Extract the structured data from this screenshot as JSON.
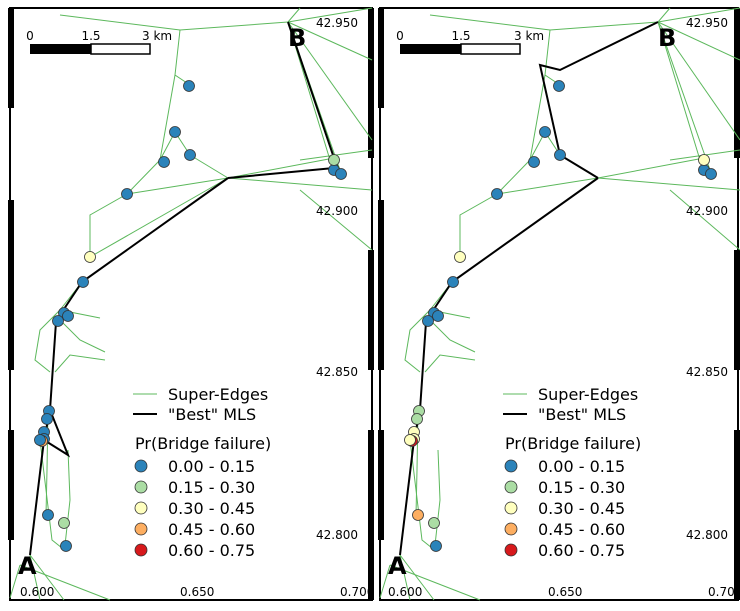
{
  "scale_bar": {
    "labels": [
      "0",
      "1.5",
      "3 km"
    ]
  },
  "endpoints": {
    "start": "A",
    "end": "B"
  },
  "lat_labels": [
    "42.950",
    "42.900",
    "42.850",
    "42.800"
  ],
  "lon_labels": [
    "0.600",
    "0.650",
    "0.700"
  ],
  "legend": {
    "super_edges": "Super-Edges",
    "best_mls": "\"Best\" MLS",
    "title": "Pr(Bridge failure)",
    "classes": [
      {
        "label": "0.00 - 0.15",
        "color": "#2b83ba"
      },
      {
        "label": "0.15 - 0.30",
        "color": "#abdda4"
      },
      {
        "label": "0.30 - 0.45",
        "color": "#ffffbf"
      },
      {
        "label": "0.45 - 0.60",
        "color": "#fdae61"
      },
      {
        "label": "0.60 - 0.75",
        "color": "#d7191c"
      }
    ]
  },
  "colors": {
    "super_edge": "#5cb85c",
    "best_mls": "#000000",
    "frame": "#000000"
  },
  "panels": [
    {
      "id": "left",
      "bridge_classes": [
        0,
        0,
        0,
        0,
        0,
        0,
        1,
        0,
        0,
        2,
        0,
        0,
        0,
        0,
        0,
        0,
        0,
        3,
        0,
        1,
        0,
        0
      ]
    },
    {
      "id": "right",
      "bridge_classes": [
        0,
        0,
        0,
        0,
        0,
        0,
        2,
        0,
        0,
        2,
        0,
        0,
        0,
        1,
        1,
        2,
        2,
        4,
        3,
        1,
        0,
        2
      ]
    }
  ]
}
